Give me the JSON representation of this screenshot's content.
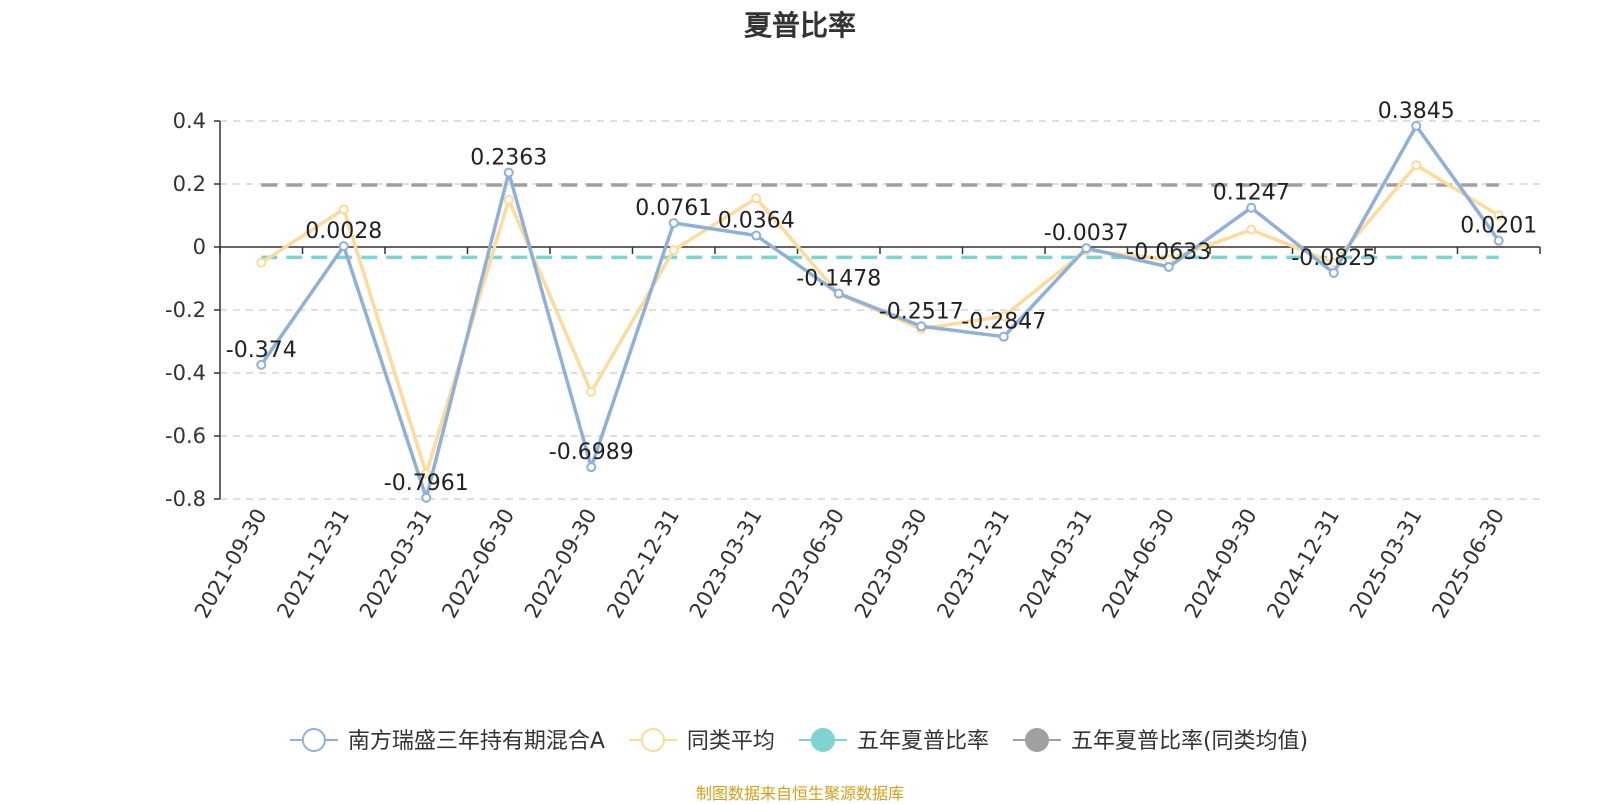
{
  "title": "夏普比率",
  "footer": "制图数据来自恒生聚源数据库",
  "chart_data": {
    "type": "line",
    "title": "夏普比率",
    "categories": [
      "2021-09-30",
      "2021-12-31",
      "2022-03-31",
      "2022-06-30",
      "2022-09-30",
      "2022-12-31",
      "2023-03-31",
      "2023-06-30",
      "2023-09-30",
      "2023-12-31",
      "2024-03-31",
      "2024-06-30",
      "2024-09-30",
      "2024-12-31",
      "2025-03-31",
      "2025-06-30"
    ],
    "ylim": [
      -0.8,
      0.4
    ],
    "yticks": [
      "0.4",
      "0.2",
      "0",
      "-0.2",
      "-0.4",
      "-0.6",
      "-0.8"
    ],
    "grid": true,
    "legend_position": "bottom",
    "series": [
      {
        "name": "南方瑞盛三年持有期混合A",
        "color": "#8eb0d9",
        "values": [
          -0.374,
          0.0028,
          -0.7961,
          0.2363,
          -0.6989,
          0.0761,
          0.0364,
          -0.1478,
          -0.2517,
          -0.2847,
          -0.0037,
          -0.0633,
          0.1247,
          -0.0825,
          0.3845,
          0.0201
        ],
        "labels": [
          "-0.374",
          "0.0028",
          "-0.7961",
          "0.2363",
          "-0.6989",
          "0.0761",
          "0.0364",
          "-0.1478",
          "-0.2517",
          "-0.2847",
          "-0.0037",
          "-0.0633",
          "0.1247",
          "-0.0825",
          "0.3845",
          "0.0201"
        ]
      },
      {
        "name": "同类平均",
        "color": "#fddb9a",
        "values": [
          -0.05,
          0.12,
          -0.72,
          0.15,
          -0.46,
          -0.01,
          0.155,
          -0.15,
          -0.26,
          -0.22,
          -0.01,
          -0.04,
          0.055,
          -0.05,
          0.26,
          0.1
        ]
      },
      {
        "name": "五年夏普比率",
        "color": "#7fd3d0",
        "constant": -0.033,
        "style": "dashed"
      },
      {
        "name": "五年夏普比率(同类均值)",
        "color": "#a0a0a0",
        "constant": 0.197,
        "style": "dashed"
      }
    ]
  }
}
